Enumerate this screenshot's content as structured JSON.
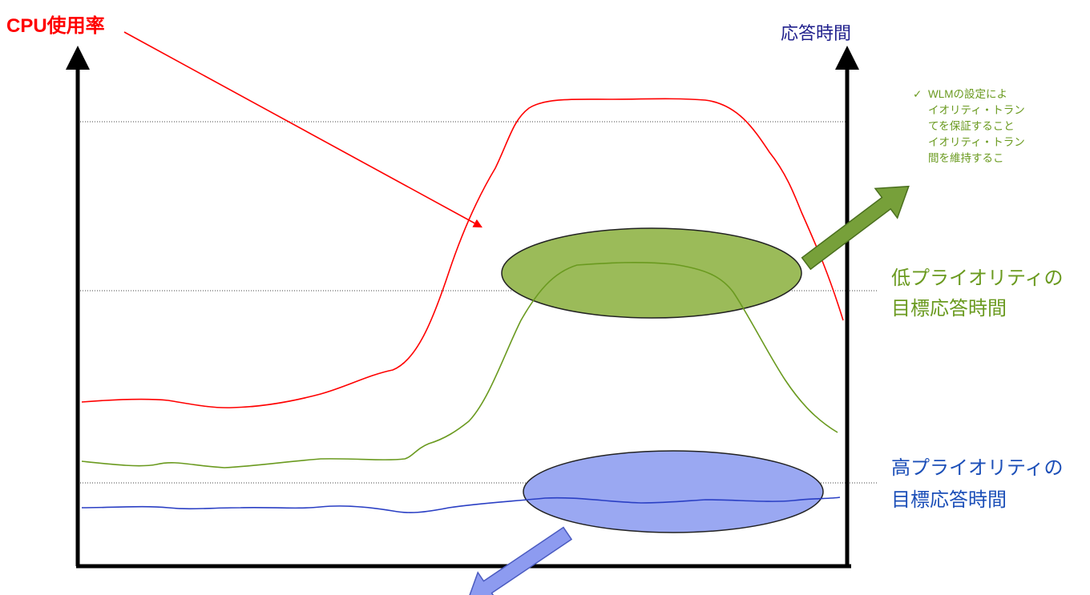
{
  "labels": {
    "cpu_usage": "CPU使用率",
    "response_time": "応答時間",
    "low_priority_target": [
      "低プライオリティの",
      "目標応答時間"
    ],
    "high_priority_target": [
      "高プライオリティの",
      "目標応答時間"
    ]
  },
  "note": {
    "bullet_icon": "check-icon",
    "lines": [
      "WLMの設定によ",
      "イオリティ・トラン",
      "てを保証すること",
      "イオリティ・トラン",
      "間を維持するこ"
    ]
  },
  "colors": {
    "cpu_line": "#ff0000",
    "low_priority_line": "#6a9a1f",
    "high_priority_line": "#2a3fc4",
    "low_ellipse_fill": "#9bbb59",
    "high_ellipse_fill": "#9aa8f2",
    "axis": "#000000"
  }
}
